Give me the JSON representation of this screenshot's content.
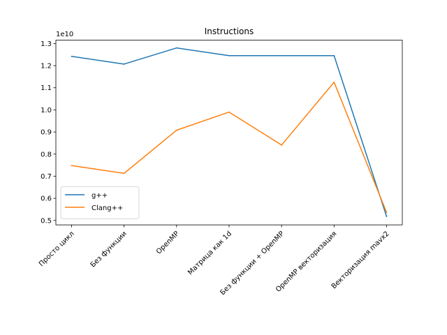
{
  "chart_data": {
    "type": "line",
    "title": "Instructions",
    "xlabel": "",
    "ylabel": "",
    "y_scale_label": "1e10",
    "categories": [
      "Просто цикл",
      "Без функции",
      "OpenMP",
      "Матрица как 1d",
      "Без функции + OpenMP",
      "OpenMP векторизация",
      "Векторизация mavx2"
    ],
    "y_ticks": [
      0.5,
      0.6,
      0.7,
      0.8,
      0.9,
      1.0,
      1.1,
      1.2,
      1.3
    ],
    "y_tick_labels": [
      "0.5",
      "0.6",
      "0.7",
      "0.8",
      "0.9",
      "1.0",
      "1.1",
      "1.2",
      "1.3"
    ],
    "ylim": [
      0.48,
      1.315
    ],
    "grid": false,
    "legend_position": "lower-left",
    "series": [
      {
        "name": "g++",
        "color": "#1f77b4",
        "values": [
          1.242,
          1.207,
          1.28,
          1.245,
          1.245,
          1.245,
          0.518
        ]
      },
      {
        "name": "Clang++",
        "color": "#ff7f0e",
        "values": [
          0.748,
          0.713,
          0.908,
          0.99,
          0.841,
          1.125,
          0.536
        ]
      }
    ]
  }
}
